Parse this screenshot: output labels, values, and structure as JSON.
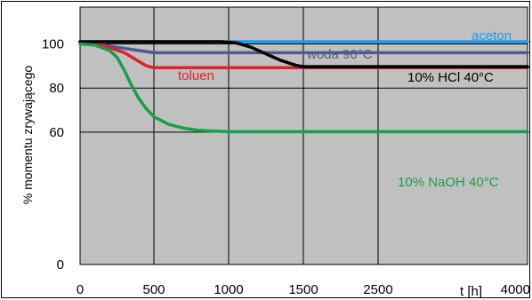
{
  "chart_data": {
    "type": "line",
    "ylabel": "% momentu zrywającego",
    "xlabel": "t [h]",
    "x_ticks": [
      0,
      500,
      1000,
      1500,
      2500,
      4000
    ],
    "y_ticks": [
      0,
      60,
      80,
      100
    ],
    "ylim": [
      0,
      107
    ],
    "grid": true,
    "plot_background": "#c0c0c0",
    "series": [
      {
        "name": "aceton",
        "color": "#1e9be8",
        "points": [
          [
            0,
            101
          ],
          [
            1000,
            101
          ],
          [
            4000,
            101
          ]
        ]
      },
      {
        "name": "woda 90°C",
        "color": "#4f5a8f",
        "points": [
          [
            0,
            101
          ],
          [
            100,
            100
          ],
          [
            250,
            98.5
          ],
          [
            400,
            97
          ],
          [
            500,
            96
          ],
          [
            1000,
            96
          ],
          [
            4000,
            96
          ]
        ]
      },
      {
        "name": "toluen",
        "color": "#e0202a",
        "points": [
          [
            0,
            101
          ],
          [
            150,
            99.5
          ],
          [
            300,
            96
          ],
          [
            400,
            92
          ],
          [
            450,
            90
          ],
          [
            500,
            89.2
          ],
          [
            1000,
            89.2
          ],
          [
            4000,
            89.2
          ]
        ]
      },
      {
        "name": "10% HCl 40°C",
        "color": "#000000",
        "points": [
          [
            0,
            101
          ],
          [
            950,
            101
          ],
          [
            1050,
            100.5
          ],
          [
            1150,
            98.5
          ],
          [
            1250,
            95.5
          ],
          [
            1350,
            92.5
          ],
          [
            1450,
            90.3
          ],
          [
            1500,
            89.7
          ],
          [
            4000,
            89.7
          ]
        ]
      },
      {
        "name": "10% NaOH 40°C",
        "color": "#17a04a",
        "points": [
          [
            0,
            100
          ],
          [
            100,
            99.5
          ],
          [
            200,
            97
          ],
          [
            250,
            94
          ],
          [
            300,
            88
          ],
          [
            350,
            81
          ],
          [
            400,
            75
          ],
          [
            450,
            70.5
          ],
          [
            500,
            67
          ],
          [
            600,
            63.5
          ],
          [
            700,
            61.8
          ],
          [
            800,
            60.8
          ],
          [
            1000,
            60.2
          ],
          [
            4000,
            60.2
          ]
        ]
      }
    ]
  }
}
